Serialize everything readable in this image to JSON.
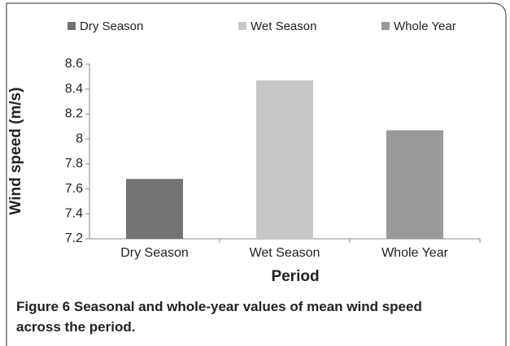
{
  "chart_data": {
    "type": "bar",
    "categories": [
      "Dry Season",
      "Wet Season",
      "Whole Year"
    ],
    "values": [
      7.68,
      8.47,
      8.07
    ],
    "colors": [
      "#737373",
      "#c8c8c8",
      "#999999"
    ],
    "ylabel": "Wind speed (m/s)",
    "xlabel": "Period",
    "ylim": [
      7.2,
      8.6
    ],
    "yticks": [
      7.2,
      7.4,
      7.6,
      7.8,
      8,
      8.2,
      8.4,
      8.6
    ],
    "legend": "top"
  },
  "caption": {
    "label": "Figure 6",
    "text": "Seasonal and whole-year values of mean wind speed across the period."
  }
}
